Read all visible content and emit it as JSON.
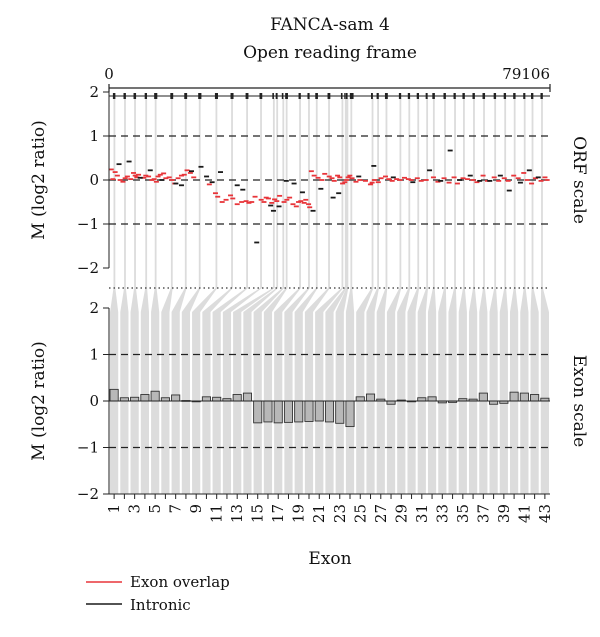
{
  "colors": {
    "exon_overlap": "#e8353a",
    "intronic": "#1a1a1a",
    "band": "#dcdcdc",
    "bar": "#b8b8b8"
  },
  "chart_data": [
    {
      "panel": "top",
      "type": "scatter",
      "title": "FANCA-sam 4",
      "subtitle": "Open reading frame",
      "x_start_label": "0",
      "x_end_label": "79106",
      "xlim": [
        0,
        79106
      ],
      "ylabel": "M (log2 ratio)",
      "ylim": [
        -2,
        2
      ],
      "yticks": [
        -2,
        -1,
        0,
        1,
        2
      ],
      "ytick_labels": [
        "−2",
        "−1",
        "0",
        "1",
        "2"
      ],
      "dashed_lines": [
        -1,
        0,
        1
      ],
      "side_label": "ORF scale",
      "exon_starts": [
        700,
        2600,
        4400,
        6400,
        8100,
        11000,
        13500,
        16000,
        19000,
        21800,
        24500,
        27000,
        29300,
        29900,
        31000,
        31600,
        34000,
        35600,
        37000,
        39200,
        41600,
        42200,
        42500,
        43200,
        47000,
        48000,
        49500,
        52000,
        53600,
        55200,
        56800,
        58000,
        60000,
        61800,
        63400,
        65200,
        67000,
        69000,
        70800,
        72500,
        74300,
        75700,
        77400
      ],
      "series": [
        {
          "name": "Exon overlap",
          "x": [
            400,
            700,
            1100,
            1500,
            2000,
            2500,
            2900,
            3300,
            3900,
            4400,
            4700,
            5000,
            5300,
            6200,
            6600,
            7100,
            7700,
            8100,
            8500,
            8800,
            9200,
            9800,
            10200,
            10800,
            11300,
            11800,
            12400,
            13000,
            13500,
            14000,
            14600,
            15200,
            18000,
            19100,
            19500,
            20300,
            21000,
            21800,
            22200,
            23000,
            23800,
            24600,
            25100,
            25600,
            26200,
            27300,
            27800,
            28200,
            28600,
            29200,
            29700,
            30100,
            30600,
            31400,
            31900,
            32400,
            33000,
            33600,
            34000,
            34400,
            35000,
            35300,
            35800,
            36000,
            36300,
            36800,
            37500,
            38200,
            38700,
            39500,
            40000,
            40400,
            41000,
            41400,
            41900,
            42300,
            42600,
            42900,
            43200,
            43600,
            44300,
            45000,
            46000,
            46900,
            47200,
            47600,
            48300,
            48800,
            49600,
            50200,
            50800,
            51600,
            52200,
            53000,
            53700,
            54200,
            55300,
            56000,
            56900,
            58200,
            59000,
            60100,
            61000,
            61900,
            62500,
            63500,
            64300,
            65300,
            66000,
            67100,
            67900,
            69100,
            69900,
            70900,
            71600,
            72600,
            73400,
            74400,
            75000,
            75800,
            76500,
            77500,
            78200,
            78600
          ],
          "y": [
            0.24,
            0.02,
            0.18,
            0.1,
            0.0,
            -0.04,
            0.04,
            0.08,
            0.02,
            0.16,
            0.1,
            0.06,
            0.12,
            0.05,
            0.1,
            0.08,
            0.0,
            0.02,
            -0.04,
            0.08,
            0.12,
            0.15,
            0.04,
            0.06,
            0.0,
            -0.08,
            0.04,
            0.1,
            0.12,
            0.22,
            0.16,
            0.06,
            -0.1,
            -0.3,
            -0.38,
            -0.5,
            -0.45,
            -0.35,
            -0.42,
            -0.55,
            -0.5,
            -0.48,
            -0.52,
            -0.5,
            -0.38,
            -0.45,
            -0.5,
            -0.4,
            -0.42,
            -0.52,
            -0.44,
            -0.48,
            -0.36,
            -0.5,
            -0.45,
            -0.4,
            -0.55,
            -0.6,
            -0.5,
            -0.48,
            -0.52,
            -0.45,
            -0.55,
            -0.62,
            0.2,
            0.1,
            0.05,
            0.0,
            0.14,
            0.08,
            0.04,
            -0.02,
            0.1,
            0.06,
            -0.08,
            -0.05,
            0.0,
            0.06,
            0.1,
            0.04,
            -0.04,
            0.0,
            -0.02,
            -0.1,
            -0.06,
            0.0,
            -0.05,
            0.04,
            0.08,
            0.02,
            -0.02,
            0.02,
            0.0,
            0.05,
            0.02,
            0.0,
            0.04,
            -0.02,
            0.0,
            0.06,
            -0.04,
            0.04,
            -0.06,
            0.06,
            -0.08,
            0.04,
            0.02,
            0.0,
            -0.05,
            0.1,
            -0.02,
            0.06,
            -0.02,
            0.04,
            -0.02,
            0.1,
            0.04,
            0.16,
            0.0,
            -0.08,
            0.04,
            -0.02,
            0.06,
            0.0
          ]
        },
        {
          "name": "Intronic",
          "x": [
            1800,
            3600,
            5600,
            7400,
            9500,
            12000,
            13000,
            14800,
            16500,
            17500,
            18500,
            20000,
            23000,
            24000,
            26500,
            29000,
            29500,
            30500,
            31800,
            33200,
            34700,
            36600,
            38000,
            40200,
            41200,
            44800,
            47500,
            51000,
            54500,
            57500,
            59500,
            61200,
            62900,
            64800,
            66500,
            68300,
            70200,
            71800,
            73800,
            75400,
            77000
          ],
          "y": [
            0.36,
            0.42,
            0.05,
            0.22,
            0.0,
            -0.08,
            -0.12,
            0.2,
            0.3,
            0.08,
            -0.05,
            0.18,
            -0.12,
            -0.22,
            -1.42,
            -0.58,
            -0.7,
            -0.6,
            -0.02,
            -0.08,
            -0.28,
            -0.7,
            -0.2,
            -0.4,
            -0.3,
            0.08,
            0.32,
            0.06,
            -0.05,
            0.22,
            -0.02,
            0.67,
            0.0,
            0.1,
            -0.02,
            -0.02,
            0.1,
            -0.24,
            -0.06,
            0.22,
            0.06
          ]
        }
      ]
    },
    {
      "panel": "bottom",
      "type": "bar",
      "xlabel": "Exon",
      "ylabel": "M (log2 ratio)",
      "ylim": [
        -2,
        2
      ],
      "yticks": [
        -2,
        -1,
        0,
        1,
        2
      ],
      "ytick_labels": [
        "−2",
        "−1",
        "0",
        "1",
        "2"
      ],
      "dashed_lines": [
        -1,
        1
      ],
      "side_label": "Exon scale",
      "categories": [
        "1",
        "2",
        "3",
        "4",
        "5",
        "6",
        "7",
        "8",
        "9",
        "10",
        "11",
        "12",
        "13",
        "14",
        "15",
        "16",
        "17",
        "18",
        "19",
        "20",
        "21",
        "22",
        "23",
        "24",
        "25",
        "26",
        "27",
        "28",
        "29",
        "30",
        "31",
        "32",
        "33",
        "34",
        "35",
        "36",
        "37",
        "38",
        "39",
        "40",
        "41",
        "42",
        "43"
      ],
      "tick_labels_shown": [
        "1",
        "3",
        "5",
        "7",
        "9",
        "11",
        "13",
        "15",
        "17",
        "19",
        "21",
        "23",
        "25",
        "27",
        "29",
        "31",
        "33",
        "35",
        "37",
        "39",
        "41",
        "43"
      ],
      "values": [
        0.25,
        0.07,
        0.08,
        0.14,
        0.21,
        0.07,
        0.13,
        0.01,
        0.0,
        0.09,
        0.08,
        0.05,
        0.14,
        0.17,
        -0.47,
        -0.45,
        -0.47,
        -0.46,
        -0.45,
        -0.44,
        -0.43,
        -0.45,
        -0.48,
        -0.55,
        0.09,
        0.15,
        0.04,
        -0.07,
        0.02,
        -0.01,
        0.07,
        0.09,
        -0.04,
        -0.03,
        0.05,
        0.04,
        0.17,
        -0.07,
        -0.05,
        0.19,
        0.17,
        0.14,
        0.06
      ]
    }
  ],
  "legend": {
    "items": [
      {
        "label": "Exon overlap",
        "color_key": "exon_overlap"
      },
      {
        "label": "Intronic",
        "color_key": "intronic"
      }
    ]
  }
}
